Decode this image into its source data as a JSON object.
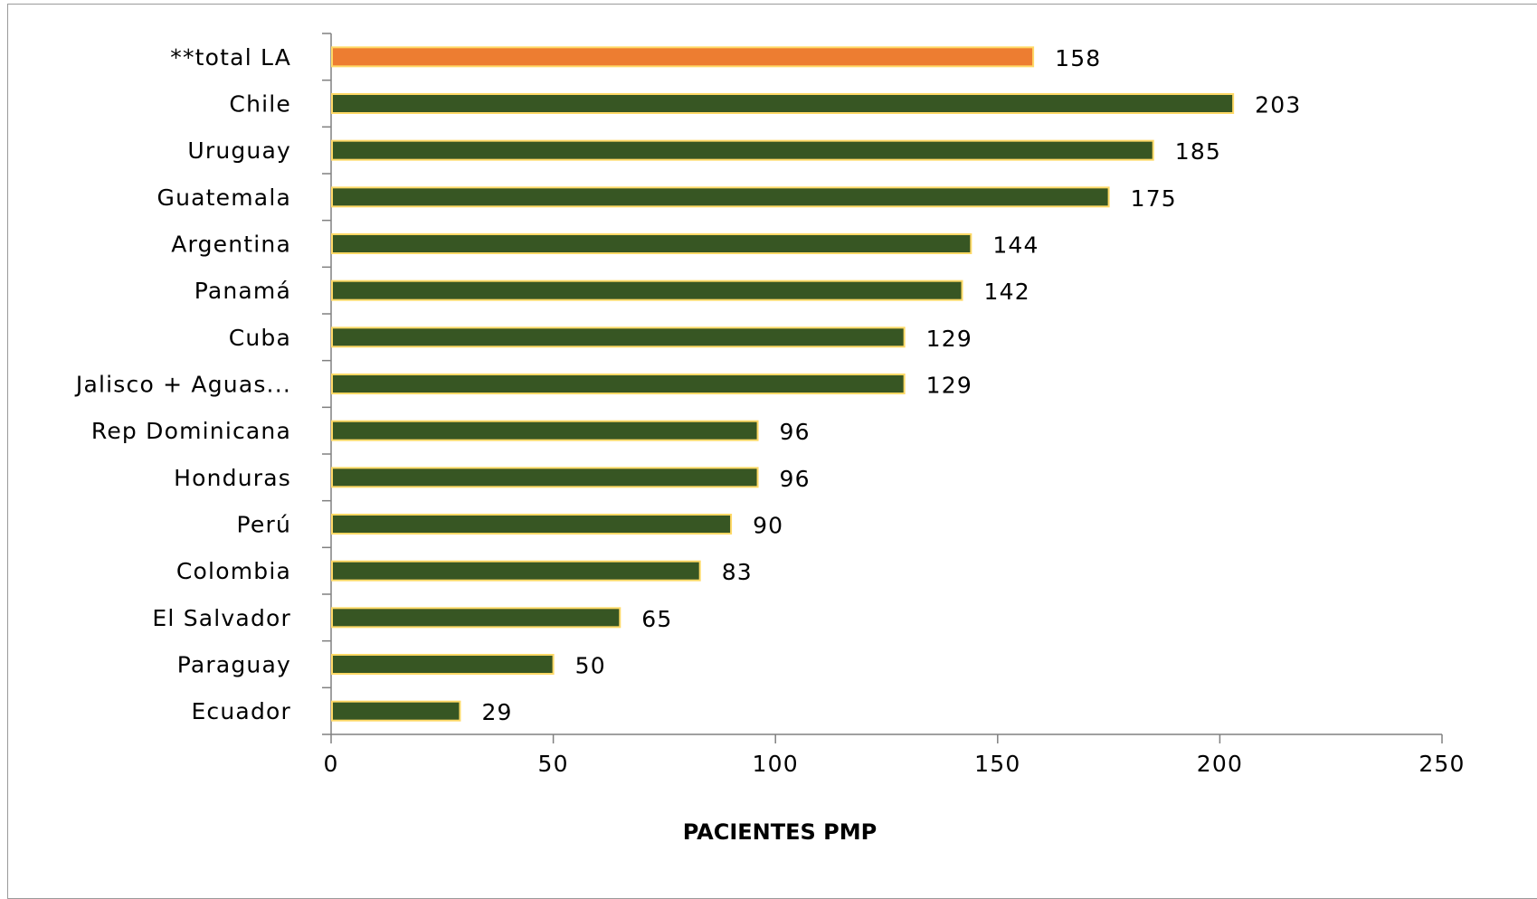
{
  "chart_data": {
    "type": "bar",
    "orientation": "horizontal",
    "categories": [
      "**total LA",
      "Chile",
      "Uruguay",
      "Guatemala",
      "Argentina",
      "Panamá",
      "Cuba",
      "Jalisco + Aguas...",
      "Rep Dominicana",
      "Honduras",
      "Perú",
      "Colombia",
      "El Salvador",
      "Paraguay",
      "Ecuador"
    ],
    "values": [
      158,
      203,
      185,
      175,
      144,
      142,
      129,
      129,
      96,
      96,
      90,
      83,
      65,
      50,
      29
    ],
    "highlight_category": "**total LA",
    "xlabel": "PACIENTES PMP",
    "ylabel": "",
    "xlim": [
      0,
      250
    ],
    "xticks": [
      0,
      50,
      100,
      150,
      200,
      250
    ],
    "grid": false,
    "legend": "none",
    "colors": {
      "bar": "#375623",
      "bar_highlight": "#ED7D31",
      "bar_border": "#FFD966",
      "axis": "#808080"
    }
  }
}
